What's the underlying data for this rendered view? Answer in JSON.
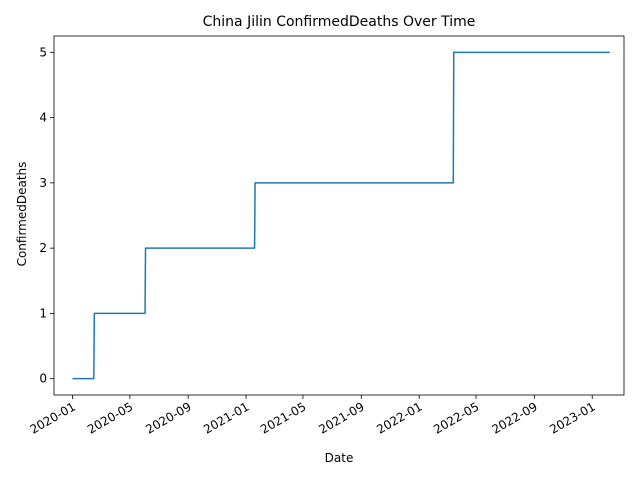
{
  "chart_data": {
    "type": "line",
    "title": "China Jilin ConfirmedDeaths Over Time",
    "xlabel": "Date",
    "ylabel": "ConfirmedDeaths",
    "x_axis_type": "date",
    "xlim": [
      "2019-11-23",
      "2023-03-09"
    ],
    "ylim": [
      -0.25,
      5.25
    ],
    "x_ticks": [
      "2020-01",
      "2020-05",
      "2020-09",
      "2021-01",
      "2021-05",
      "2021-09",
      "2022-01",
      "2022-05",
      "2022-09",
      "2023-01"
    ],
    "x_tick_dates": [
      "2020-01-01",
      "2020-05-01",
      "2020-09-01",
      "2021-01-01",
      "2021-05-01",
      "2021-09-01",
      "2022-01-01",
      "2022-05-01",
      "2022-09-01",
      "2023-01-01"
    ],
    "y_ticks": [
      0,
      1,
      2,
      3,
      4,
      5
    ],
    "grid": false,
    "legend": null,
    "step": true,
    "series": [
      {
        "color": "#1f77b4",
        "points": [
          {
            "x": "2020-01-01",
            "y": 0
          },
          {
            "x": "2020-02-15",
            "y": 0
          },
          {
            "x": "2020-02-16",
            "y": 1
          },
          {
            "x": "2020-06-02",
            "y": 1
          },
          {
            "x": "2020-06-03",
            "y": 2
          },
          {
            "x": "2021-01-19",
            "y": 2
          },
          {
            "x": "2021-01-20",
            "y": 3
          },
          {
            "x": "2022-03-14",
            "y": 3
          },
          {
            "x": "2022-03-15",
            "y": 5
          },
          {
            "x": "2023-02-07",
            "y": 5
          }
        ]
      }
    ]
  }
}
